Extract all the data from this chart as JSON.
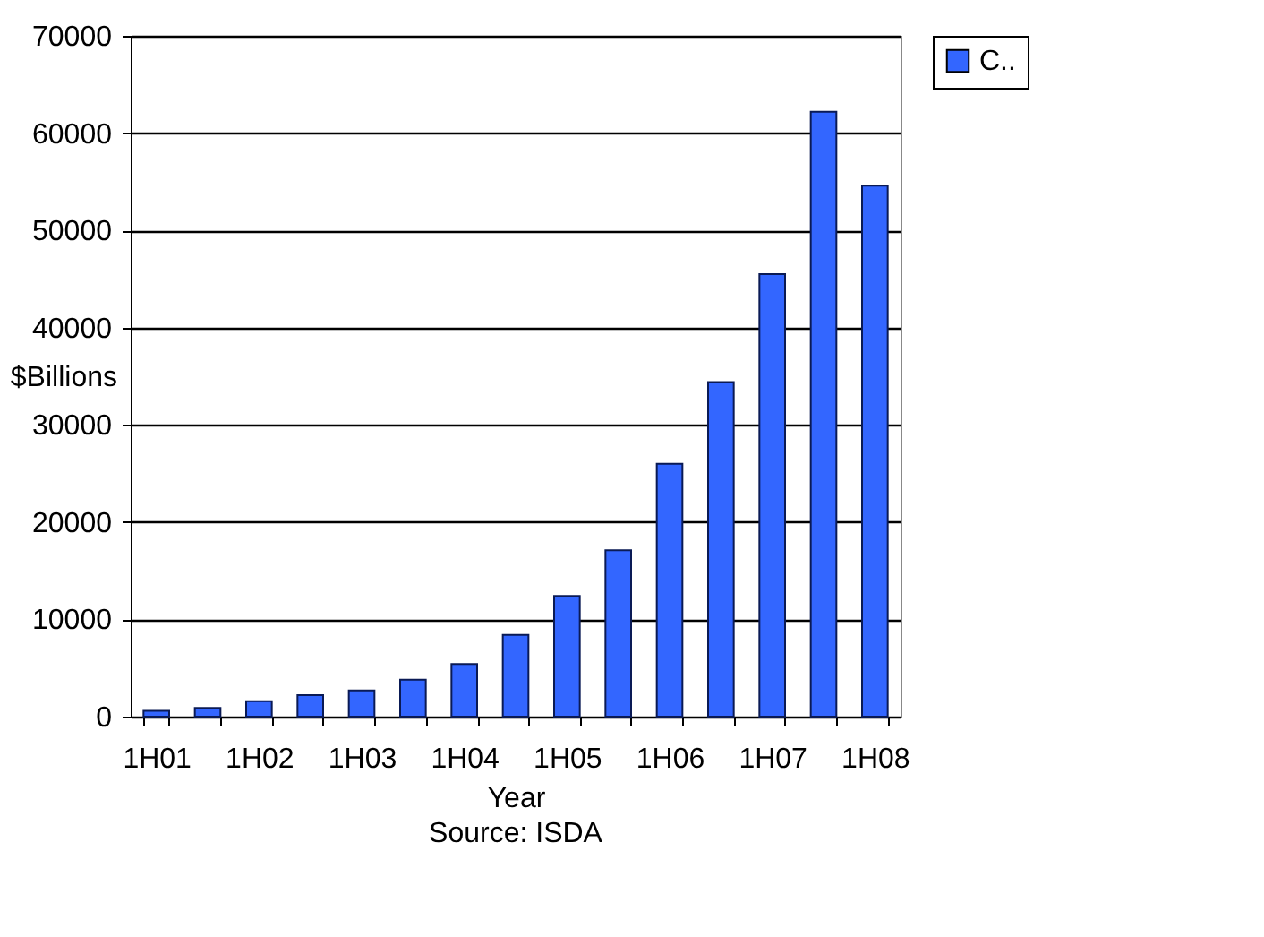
{
  "chart_data": {
    "type": "bar",
    "xlabel": "Year",
    "ylabel": "$Billions",
    "categories": [
      "1H01",
      null,
      "1H02",
      null,
      "1H03",
      null,
      "1H04",
      null,
      "1H05",
      null,
      "1H06",
      null,
      "1H07",
      null,
      "1H08"
    ],
    "series": [
      {
        "name": "C..",
        "color": "#3366ff",
        "values": [
          600,
          900,
          1600,
          2200,
          2700,
          3800,
          5400,
          8400,
          12400,
          17100,
          26000,
          34400,
          45500,
          62200,
          54600
        ]
      }
    ],
    "ylim": [
      0,
      70000
    ],
    "yticks": [
      0,
      10000,
      20000,
      30000,
      40000,
      50000,
      60000,
      70000
    ],
    "grid": "y",
    "legend": "right",
    "annotations": [
      "Source: ISDA"
    ]
  }
}
